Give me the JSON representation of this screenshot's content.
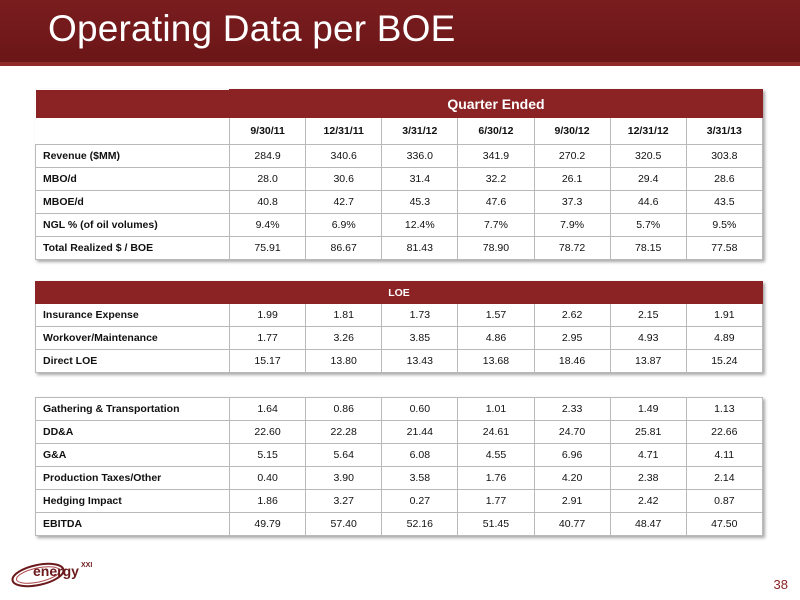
{
  "title": "Operating Data per BOE",
  "header": {
    "group_label": "Quarter Ended",
    "dates": [
      "9/30/11",
      "12/31/11",
      "3/31/12",
      "6/30/12",
      "9/30/12",
      "12/31/12",
      "3/31/13"
    ]
  },
  "table1": {
    "rows": [
      {
        "label": "Revenue ($MM)",
        "values": [
          "284.9",
          "340.6",
          "336.0",
          "341.9",
          "270.2",
          "320.5",
          "303.8"
        ]
      },
      {
        "label": "MBO/d",
        "values": [
          "28.0",
          "30.6",
          "31.4",
          "32.2",
          "26.1",
          "29.4",
          "28.6"
        ]
      },
      {
        "label": "MBOE/d",
        "values": [
          "40.8",
          "42.7",
          "45.3",
          "47.6",
          "37.3",
          "44.6",
          "43.5"
        ]
      },
      {
        "label": "NGL % (of oil volumes)",
        "values": [
          "9.4%",
          "6.9%",
          "12.4%",
          "7.7%",
          "7.9%",
          "5.7%",
          "9.5%"
        ]
      },
      {
        "label": "Total Realized $ / BOE",
        "values": [
          "75.91",
          "86.67",
          "81.43",
          "78.90",
          "78.72",
          "78.15",
          "77.58"
        ]
      }
    ]
  },
  "table2": {
    "header": "LOE",
    "rows": [
      {
        "label": "Insurance Expense",
        "values": [
          "1.99",
          "1.81",
          "1.73",
          "1.57",
          "2.62",
          "2.15",
          "1.91"
        ]
      },
      {
        "label": "Workover/Maintenance",
        "values": [
          "1.77",
          "3.26",
          "3.85",
          "4.86",
          "2.95",
          "4.93",
          "4.89"
        ]
      },
      {
        "label": "Direct LOE",
        "values": [
          "15.17",
          "13.80",
          "13.43",
          "13.68",
          "18.46",
          "13.87",
          "15.24"
        ]
      }
    ]
  },
  "table3": {
    "rows": [
      {
        "label": "Gathering & Transportation",
        "values": [
          "1.64",
          "0.86",
          "0.60",
          "1.01",
          "2.33",
          "1.49",
          "1.13"
        ]
      },
      {
        "label": "DD&A",
        "values": [
          "22.60",
          "22.28",
          "21.44",
          "24.61",
          "24.70",
          "25.81",
          "22.66"
        ]
      },
      {
        "label": "G&A",
        "values": [
          "5.15",
          "5.64",
          "6.08",
          "4.55",
          "6.96",
          "4.71",
          "4.11"
        ]
      },
      {
        "label": "Production Taxes/Other",
        "values": [
          "0.40",
          "3.90",
          "3.58",
          "1.76",
          "4.20",
          "2.38",
          "2.14"
        ]
      },
      {
        "label": "Hedging Impact",
        "values": [
          "1.86",
          "3.27",
          "0.27",
          "1.77",
          "2.91",
          "2.42",
          "0.87"
        ]
      },
      {
        "label": "EBITDA",
        "values": [
          "49.79",
          "57.40",
          "52.16",
          "51.45",
          "40.77",
          "48.47",
          "47.50"
        ]
      }
    ]
  },
  "footer": {
    "logo_text": "energy",
    "logo_sup": "XXI",
    "page_number": "38"
  },
  "colors": {
    "brand": "#7a1d1f",
    "header_fill": "#8b2325"
  }
}
